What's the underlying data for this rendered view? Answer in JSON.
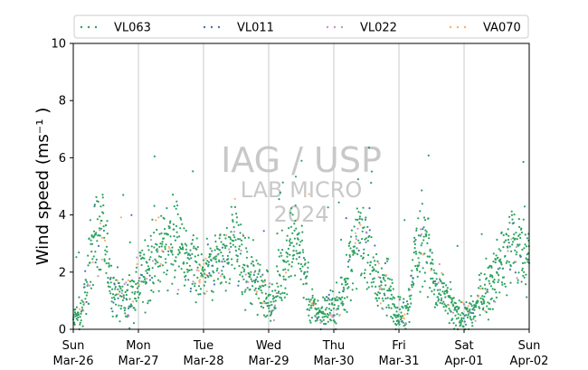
{
  "chart_data": {
    "type": "scatter",
    "ylabel": "Wind speed (ms⁻¹ )",
    "ylim": [
      0,
      10
    ],
    "y_ticks": [
      "0",
      "2",
      "4",
      "6",
      "8",
      "10"
    ],
    "x_ticks": [
      {
        "day": "Sun",
        "date": "Mar-26"
      },
      {
        "day": "Mon",
        "date": "Mar-27"
      },
      {
        "day": "Tue",
        "date": "Mar-28"
      },
      {
        "day": "Wed",
        "date": "Mar-29"
      },
      {
        "day": "Thu",
        "date": "Mar-30"
      },
      {
        "day": "Fri",
        "date": "Mar-31"
      },
      {
        "day": "Sat",
        "date": "Apr-01"
      },
      {
        "day": "Sun",
        "date": "Apr-02"
      }
    ],
    "xlim": [
      "2023-03-26",
      "2023-04-02"
    ],
    "grid": "vertical daily lines",
    "legend_position": "top",
    "watermark": [
      "IAG / USP",
      "LAB MICRO",
      "2024"
    ],
    "series": [
      {
        "name": "VL063",
        "color": "#2ca25f"
      },
      {
        "name": "VL011",
        "color": "#4c72b0"
      },
      {
        "name": "VL022",
        "color": "#c994c7"
      },
      {
        "name": "VA070",
        "color": "#fdae6b"
      }
    ],
    "hourly_typical_speed": [
      0.3,
      0.6,
      3.0,
      3.6,
      1.5,
      1.2,
      1.0,
      1.8,
      2.2,
      2.8,
      3.2,
      3.0,
      2.2,
      2.0,
      1.9,
      2.3,
      2.6,
      3.2,
      2.0,
      1.8,
      1.4,
      0.8,
      2.0,
      3.0,
      2.6,
      0.8,
      0.6,
      0.7,
      0.9,
      2.0,
      3.2,
      3.0,
      1.5,
      1.6,
      0.6,
      0.5,
      2.5,
      3.5,
      1.5,
      1.2,
      0.6,
      0.5,
      0.5,
      1.2,
      1.6,
      2.2,
      3.0,
      2.8,
      2.7
    ]
  }
}
